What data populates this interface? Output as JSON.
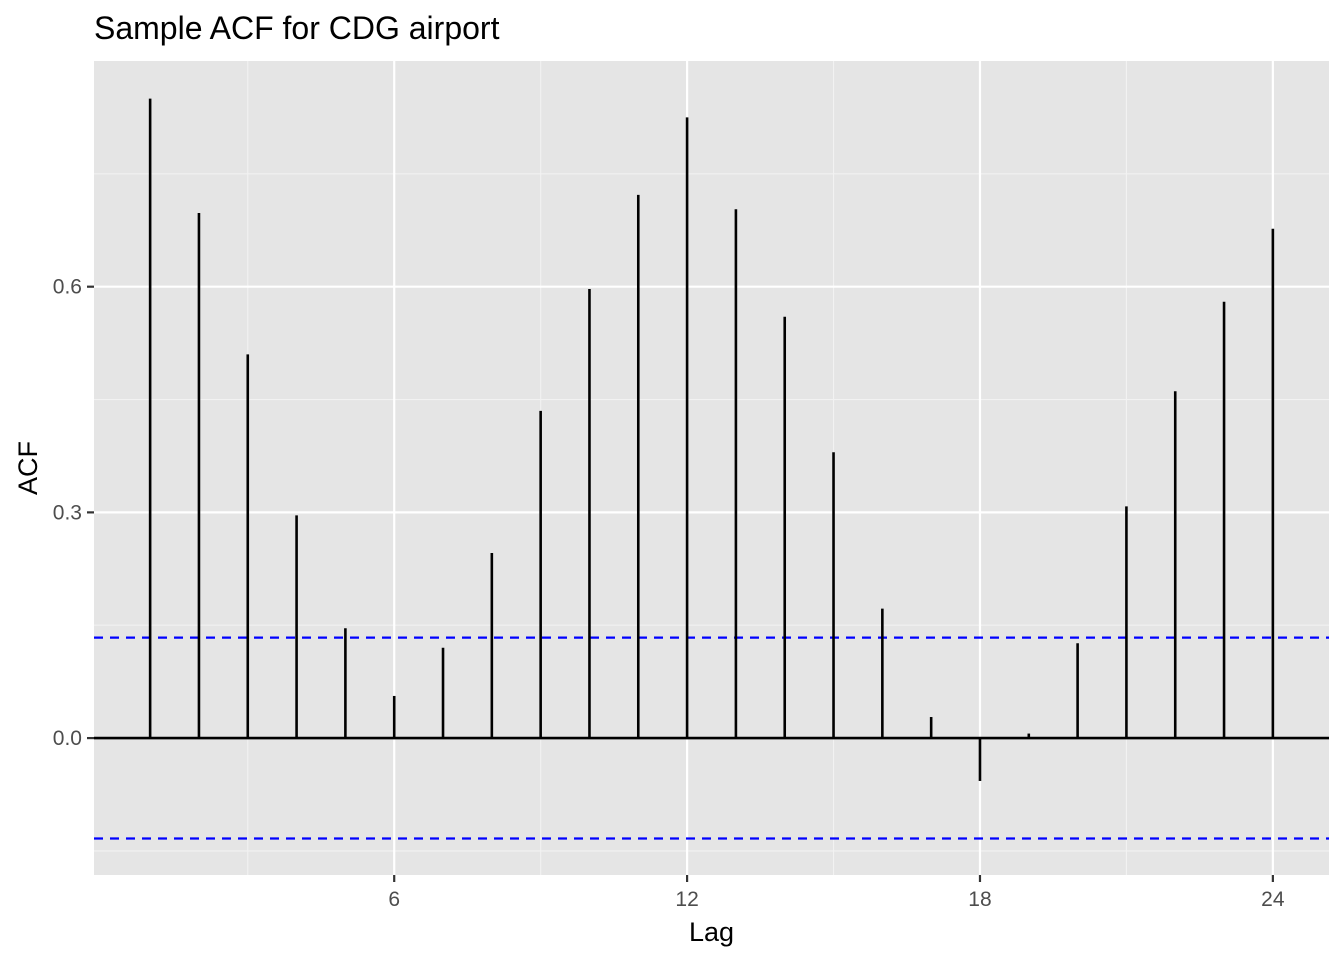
{
  "chart_data": {
    "type": "bar",
    "style": "acf-lollipop",
    "title": "Sample ACF for CDG airport",
    "xlabel": "Lag",
    "ylabel": "ACF",
    "x_ticks": [
      6,
      12,
      18,
      24
    ],
    "x_tick_labels": [
      "6",
      "12",
      "18",
      "24"
    ],
    "y_ticks": [
      0.0,
      0.3,
      0.6
    ],
    "y_tick_labels": [
      "0.0",
      "0.3",
      "0.6"
    ],
    "xlim": [
      -0.15,
      25.15
    ],
    "ylim": [
      -0.182,
      0.9
    ],
    "grid": true,
    "lags": [
      1,
      2,
      3,
      4,
      5,
      6,
      7,
      8,
      9,
      10,
      11,
      12,
      13,
      14,
      15,
      16,
      17,
      18,
      19,
      20,
      21,
      22,
      23,
      24
    ],
    "values": [
      0.85,
      0.698,
      0.51,
      0.296,
      0.146,
      0.056,
      0.12,
      0.246,
      0.435,
      0.597,
      0.722,
      0.825,
      0.703,
      0.56,
      0.38,
      0.172,
      0.028,
      -0.057,
      0.006,
      0.126,
      0.308,
      0.461,
      0.58,
      0.677
    ],
    "confidence_bound": 0.1335,
    "colors": {
      "panel_bg": "#e5e5e5",
      "grid_major": "#ffffff",
      "grid_minor": "#f2f2f2",
      "spike": "#000000",
      "bound": "#0000ff",
      "tick_text": "#4d4d4d"
    }
  }
}
